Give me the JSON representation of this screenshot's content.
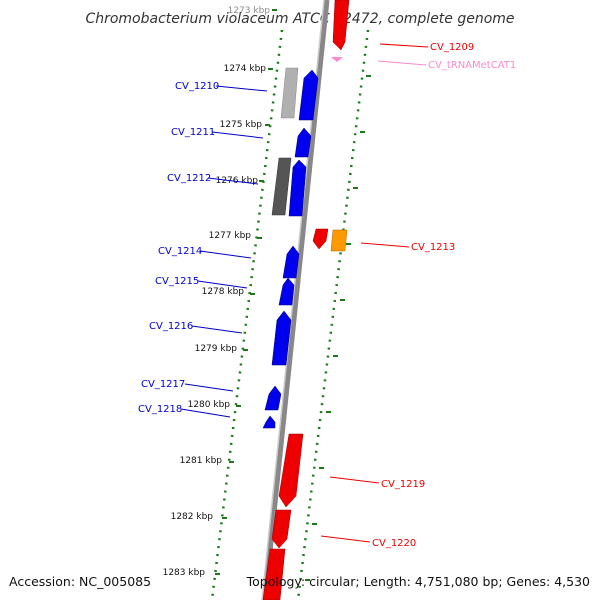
{
  "title": "Chromobacterium violaceum ATCC 12472, complete genome",
  "footer": {
    "accession": "Accession: NC_005085",
    "summary": "Topology: circular; Length: 4,751,080 bp; Genes: 4,530"
  },
  "colors": {
    "forward": "#0000ee",
    "reverse": "#ee0000",
    "reverse_orange": "#ff9900",
    "rna_pink": "#ff88cc",
    "backbone": "#888888",
    "ticks": "#1a7a1a",
    "gray_light": "#b0b0b0",
    "gray_dark": "#555555"
  },
  "ticks": [
    "1273 kbp",
    "1274 kbp",
    "1275 kbp",
    "1276 kbp",
    "1277 kbp",
    "1278 kbp",
    "1279 kbp",
    "1280 kbp",
    "1281 kbp",
    "1282 kbp",
    "1283 kbp"
  ],
  "labels": {
    "left": [
      "CV_1210",
      "CV_1211",
      "CV_1212",
      "CV_1214",
      "CV_1215",
      "CV_1216",
      "CV_1217",
      "CV_1218"
    ],
    "right": [
      "CV_1209",
      "CV_tRNAMetCAT1",
      "CV_1213",
      "CV_1219",
      "CV_1220"
    ]
  }
}
